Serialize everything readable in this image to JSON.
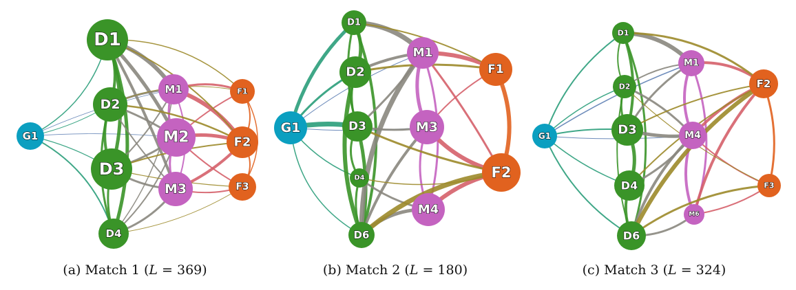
{
  "colors": {
    "goalkeeper": "#0b9fc0",
    "defender": "#3a9428",
    "midfielder": "#c463c0",
    "forward": "#e1621f",
    "edge_gk_def": "#2a9d7a",
    "edge_def_def": "#3a9428",
    "edge_def_mid": "#8a877e",
    "edge_mid_fwd": "#d5616a",
    "edge_def_fwd": "#9c8a2a",
    "edge_mid_mid": "#c463c0",
    "edge_fwd_fwd": "#e1621f",
    "edge_gk_mid": "#5e7fb4"
  },
  "panels": [
    {
      "caption": {
        "prefix": "(a)  Match 1 (",
        "var": "L",
        "eq": " = ",
        "value": "369",
        "suffix": ")"
      },
      "nodes": [
        {
          "id": "G1",
          "role": "goalkeeper"
        },
        {
          "id": "D1",
          "role": "defender"
        },
        {
          "id": "D2",
          "role": "defender"
        },
        {
          "id": "D3",
          "role": "defender"
        },
        {
          "id": "D4",
          "role": "defender"
        },
        {
          "id": "M1",
          "role": "midfielder"
        },
        {
          "id": "M2",
          "role": "midfielder"
        },
        {
          "id": "M3",
          "role": "midfielder"
        },
        {
          "id": "F1",
          "role": "forward"
        },
        {
          "id": "F2",
          "role": "forward"
        },
        {
          "id": "F3",
          "role": "forward"
        }
      ]
    },
    {
      "caption": {
        "prefix": "(b)  Match 2 (",
        "var": "L",
        "eq": " = ",
        "value": "180",
        "suffix": ")"
      },
      "nodes": [
        {
          "id": "G1",
          "role": "goalkeeper"
        },
        {
          "id": "D1",
          "role": "defender"
        },
        {
          "id": "D2",
          "role": "defender"
        },
        {
          "id": "D3",
          "role": "defender"
        },
        {
          "id": "D4",
          "role": "defender"
        },
        {
          "id": "D6",
          "role": "defender"
        },
        {
          "id": "M1",
          "role": "midfielder"
        },
        {
          "id": "M3",
          "role": "midfielder"
        },
        {
          "id": "M4",
          "role": "midfielder"
        },
        {
          "id": "F1",
          "role": "forward"
        },
        {
          "id": "F2",
          "role": "forward"
        }
      ]
    },
    {
      "caption": {
        "prefix": "(c)  Match 3 (",
        "var": "L",
        "eq": " = ",
        "value": "324",
        "suffix": ")"
      },
      "nodes": [
        {
          "id": "G1",
          "role": "goalkeeper"
        },
        {
          "id": "D1",
          "role": "defender"
        },
        {
          "id": "D2",
          "role": "defender"
        },
        {
          "id": "D3",
          "role": "defender"
        },
        {
          "id": "D4",
          "role": "defender"
        },
        {
          "id": "D6",
          "role": "defender"
        },
        {
          "id": "M1",
          "role": "midfielder"
        },
        {
          "id": "M4",
          "role": "midfielder"
        },
        {
          "id": "M6",
          "role": "midfielder"
        },
        {
          "id": "F2",
          "role": "forward"
        },
        {
          "id": "F3",
          "role": "forward"
        }
      ]
    }
  ]
}
